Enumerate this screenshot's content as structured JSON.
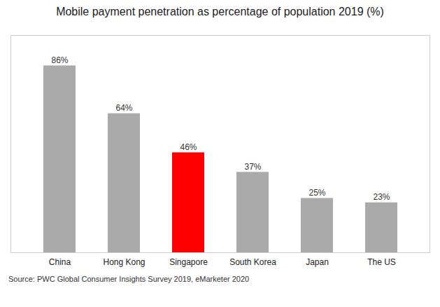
{
  "chart_data": {
    "type": "bar",
    "title": "Mobile payment penetration as percentage of population 2019 (%)",
    "categories": [
      "China",
      "Hong Kong",
      "Singapore",
      "South Korea",
      "Japan",
      "The US"
    ],
    "values": [
      86,
      64,
      46,
      37,
      25,
      23
    ],
    "value_labels": [
      "86%",
      "64%",
      "46%",
      "37%",
      "25%",
      "23%"
    ],
    "colors": [
      "#aaaaaa",
      "#aaaaaa",
      "#ff0000",
      "#aaaaaa",
      "#aaaaaa",
      "#aaaaaa"
    ],
    "ylim": [
      0,
      100
    ],
    "grid": false,
    "data_labels": true,
    "tick_labels": "x",
    "caption": "Source: PWC Global Consumer Insights Survey 2019, eMarketer 2020"
  }
}
